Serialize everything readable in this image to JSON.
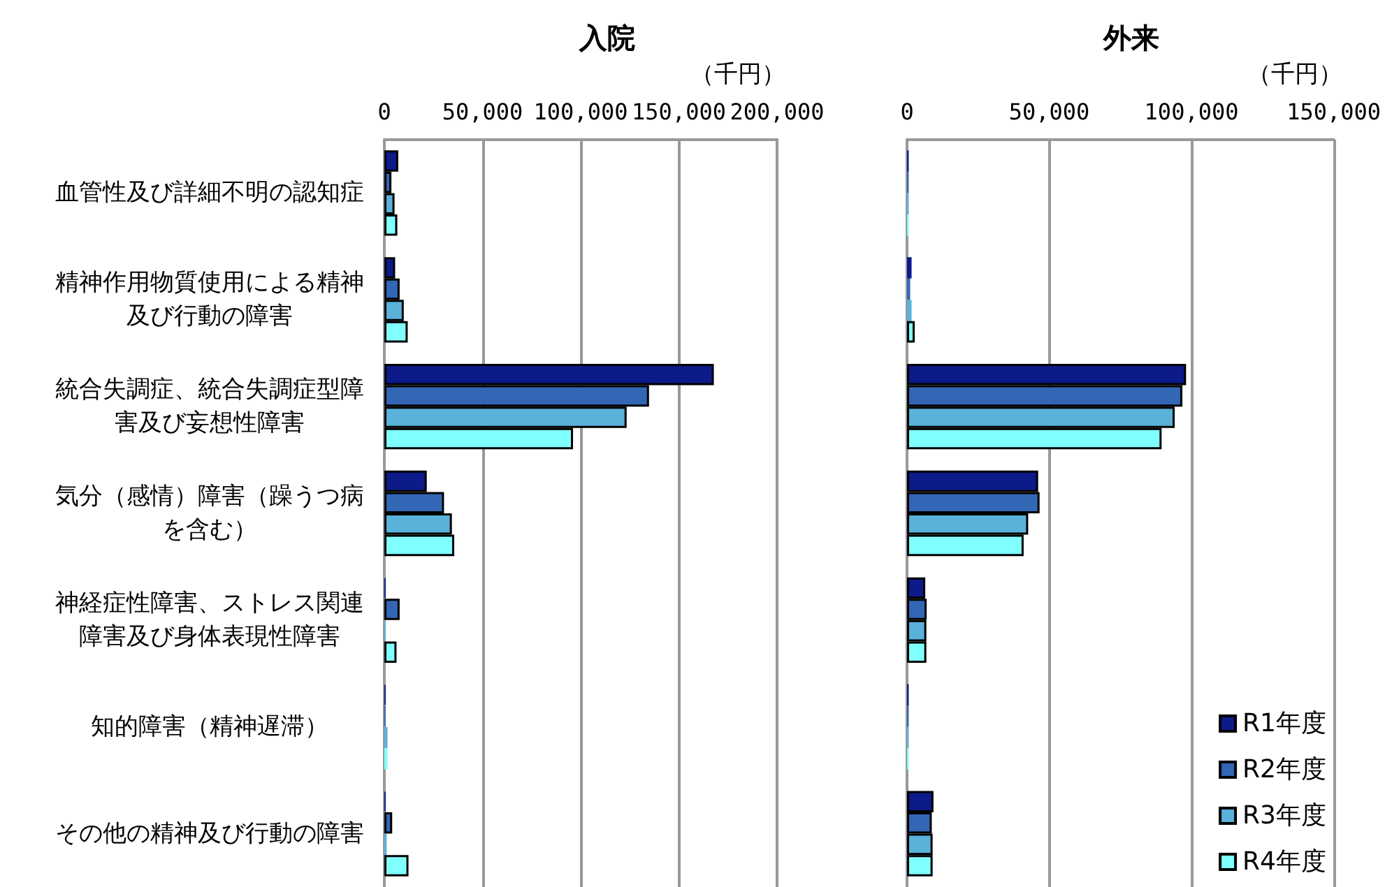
{
  "chart_data": [
    {
      "type": "bar",
      "orientation": "horizontal",
      "title": "入院",
      "xlabel": "（千円）",
      "categories": [
        "血管性及び詳細不明の認知症",
        "精神作用物質使用による精神及び行動の障害",
        "統合失調症、統合失調症型障害及び妄想性障害",
        "気分（感情）障害（躁うつ病を含む）",
        "神経症性障害、ストレス関連障害及び身体表現性障害",
        "知的障害（精神遅滞）",
        "その他の精神及び行動の障害"
      ],
      "series": [
        {
          "color": "#0c1a8a",
          "values": [
            7100,
            5500,
            167800,
            21600,
            700,
            700,
            700
          ]
        },
        {
          "color": "#3366b4",
          "values": [
            3600,
            7800,
            134800,
            30400,
            7800,
            500,
            4000
          ]
        },
        {
          "color": "#5ab1d9",
          "values": [
            5200,
            9900,
            123400,
            34400,
            500,
            1600,
            1200
          ]
        },
        {
          "color": "#80ffff",
          "values": [
            6600,
            11900,
            96100,
            35600,
            6200,
            1600,
            12300
          ]
        }
      ],
      "xlim": [
        0,
        200000
      ],
      "xticks": [
        0,
        {
          "value": 50000,
          "label": "50,000"
        },
        {
          "value": 100000,
          "label": "100,000"
        },
        {
          "value": 150000,
          "label": "150,000"
        },
        {
          "value": 200000,
          "label": "200,000"
        }
      ],
      "grid": "x"
    },
    {
      "type": "bar",
      "orientation": "horizontal",
      "title": "外来",
      "xlabel": "（千円）",
      "categories": [
        "血管性及び詳細不明の認知症",
        "精神作用物質使用による精神及び行動の障害",
        "統合失調症、統合失調症型障害及び妄想性障害",
        "気分（感情）障害（躁うつ病を含む）",
        "神経症性障害、ストレス関連障害及び身体表現性障害",
        "知的障害（精神遅滞）",
        "その他の精神及び行動の障害"
      ],
      "series": [
        {
          "name": "R1年度",
          "color": "#0c1a8a",
          "values": [
            600,
            1600,
            98100,
            46100,
            6400,
            600,
            9300
          ]
        },
        {
          "name": "R2年度",
          "color": "#3366b4",
          "values": [
            600,
            1100,
            96800,
            46600,
            6900,
            600,
            8700
          ]
        },
        {
          "name": "R3年度",
          "color": "#5ab1d9",
          "values": [
            600,
            1600,
            94100,
            42600,
            6800,
            600,
            9000
          ]
        },
        {
          "name": "R4年度",
          "color": "#80ffff",
          "values": [
            600,
            2700,
            89500,
            41000,
            6800,
            600,
            9000
          ]
        }
      ],
      "xlim": [
        0,
        150000
      ],
      "xticks": [
        0,
        {
          "value": 50000,
          "label": "50,000"
        },
        {
          "value": 100000,
          "label": "100,000"
        },
        {
          "value": 150000,
          "label": "150,000"
        }
      ],
      "grid": "x",
      "legend": "bottom right",
      "tick_labels": "x"
    }
  ]
}
